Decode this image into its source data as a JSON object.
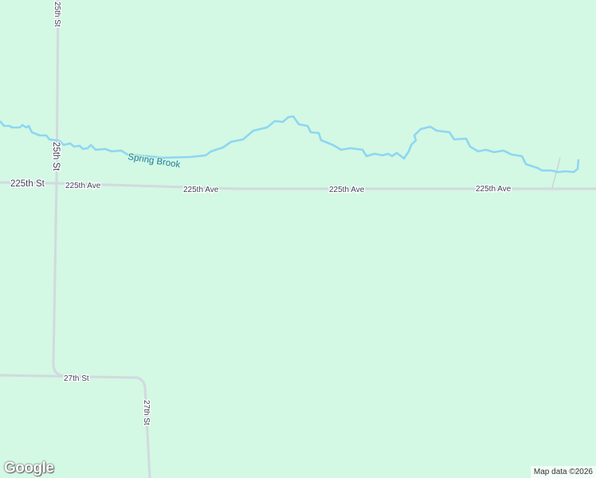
{
  "map": {
    "background_color": "#d3f8e3",
    "water_color": "#8ed6f3",
    "road_color": "#d2d9e0",
    "labels": {
      "road_25th_st_top": "25th St",
      "road_25th_st_mid": "25th St",
      "road_225th_st": "225th St",
      "road_225th_ave_1": "225th Ave",
      "road_225th_ave_2": "225th Ave",
      "road_225th_ave_3": "225th Ave",
      "road_225th_ave_4": "225th Ave",
      "road_27th_st_h": "27th St",
      "road_27th_st_v": "27th St",
      "stream": "Spring Brook"
    }
  },
  "branding": {
    "logo": "Google"
  },
  "attribution": "Map data ©2026"
}
